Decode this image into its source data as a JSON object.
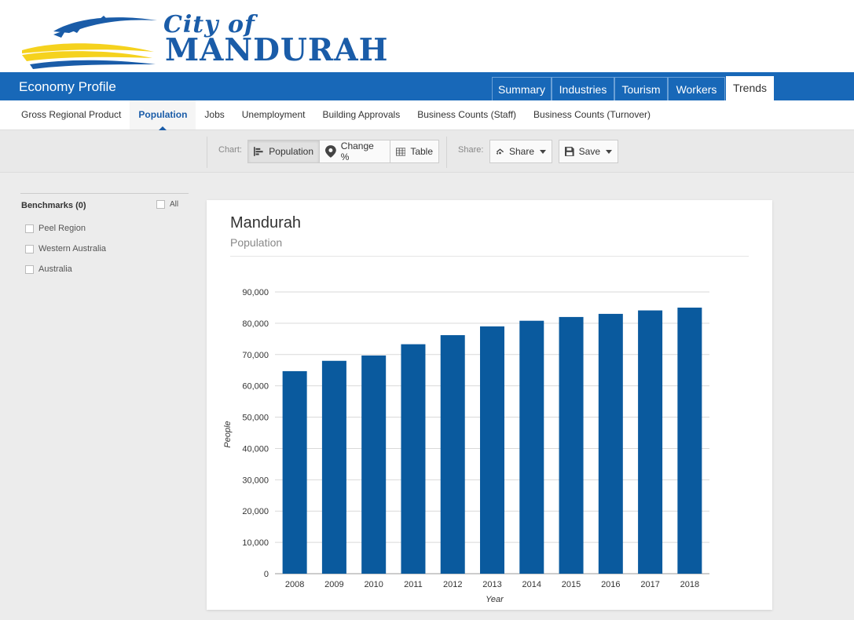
{
  "brand": {
    "city_line": "City of",
    "name_line": "MANDURAH",
    "colors": {
      "blue": "#1a5ca8",
      "yellow": "#f5d21e"
    }
  },
  "app": {
    "title": "Economy Profile"
  },
  "main_tabs": [
    {
      "label": "Summary"
    },
    {
      "label": "Industries"
    },
    {
      "label": "Tourism"
    },
    {
      "label": "Workers"
    },
    {
      "label": "Trends",
      "active": true
    }
  ],
  "sub_nav": [
    {
      "label": "Gross Regional Product"
    },
    {
      "label": "Population",
      "active": true
    },
    {
      "label": "Jobs"
    },
    {
      "label": "Unemployment"
    },
    {
      "label": "Building Approvals"
    },
    {
      "label": "Business Counts (Staff)"
    },
    {
      "label": "Business Counts (Turnover)"
    }
  ],
  "toolbar": {
    "chart_label": "Chart:",
    "population_btn": "Population",
    "change_btn": "Change %",
    "table_btn": "Table",
    "share_label": "Share:",
    "share_btn": "Share",
    "save_btn": "Save"
  },
  "benchmarks": {
    "title": "Benchmarks (0)",
    "all_label": "All",
    "items": [
      {
        "label": "Peel Region"
      },
      {
        "label": "Western Australia"
      },
      {
        "label": "Australia"
      }
    ]
  },
  "card": {
    "title": "Mandurah",
    "subtitle": "Population"
  },
  "chart_data": {
    "type": "bar",
    "title": "Mandurah",
    "subtitle": "Population",
    "xlabel": "Year",
    "ylabel": "People",
    "categories": [
      "2008",
      "2009",
      "2010",
      "2011",
      "2012",
      "2013",
      "2014",
      "2015",
      "2016",
      "2017",
      "2018"
    ],
    "values": [
      64700,
      68000,
      69700,
      73300,
      76200,
      79000,
      80800,
      82000,
      83000,
      84100,
      85000
    ],
    "ylim": [
      0,
      90000
    ],
    "yticks": [
      0,
      10000,
      20000,
      30000,
      40000,
      50000,
      60000,
      70000,
      80000,
      90000
    ],
    "ytick_labels": [
      "0",
      "10,000",
      "20,000",
      "30,000",
      "40,000",
      "50,000",
      "60,000",
      "70,000",
      "80,000",
      "90,000"
    ],
    "bar_color": "#0a5a9e",
    "grid": true,
    "legend": "none"
  }
}
